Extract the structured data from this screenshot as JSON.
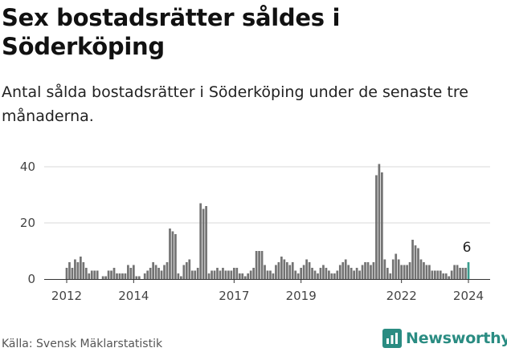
{
  "title": "Sex bostadsrätter såldes i Söderköping",
  "subtitle": "Antal sålda bostadsrätter i Söderköping under de senaste tre månaderna.",
  "source": "Källa: Svensk Mäklarstatistik",
  "brand": {
    "name": "Newsworthy",
    "icon": "newsworthy-logo-icon",
    "color": "#2a8c82"
  },
  "chart_data": {
    "type": "bar",
    "title": "",
    "xlabel": "",
    "ylabel": "",
    "ylim": [
      0,
      42
    ],
    "y_ticks": [
      "0",
      "20",
      "40"
    ],
    "x_ticks": [
      {
        "label": "2012",
        "index": 0
      },
      {
        "label": "2014",
        "index": 24
      },
      {
        "label": "2017",
        "index": 60
      },
      {
        "label": "2019",
        "index": 84
      },
      {
        "label": "2022",
        "index": 120
      },
      {
        "label": "2024",
        "index": 144
      }
    ],
    "categories": [
      "2012-01",
      "2012-02",
      "2012-03",
      "2012-04",
      "2012-05",
      "2012-06",
      "2012-07",
      "2012-08",
      "2012-09",
      "2012-10",
      "2012-11",
      "2012-12",
      "2013-01",
      "2013-02",
      "2013-03",
      "2013-04",
      "2013-05",
      "2013-06",
      "2013-07",
      "2013-08",
      "2013-09",
      "2013-10",
      "2013-11",
      "2013-12",
      "2014-01",
      "2014-02",
      "2014-03",
      "2014-04",
      "2014-05",
      "2014-06",
      "2014-07",
      "2014-08",
      "2014-09",
      "2014-10",
      "2014-11",
      "2014-12",
      "2015-01",
      "2015-02",
      "2015-03",
      "2015-04",
      "2015-05",
      "2015-06",
      "2015-07",
      "2015-08",
      "2015-09",
      "2015-10",
      "2015-11",
      "2015-12",
      "2016-01",
      "2016-02",
      "2016-03",
      "2016-04",
      "2016-05",
      "2016-06",
      "2016-07",
      "2016-08",
      "2016-09",
      "2016-10",
      "2016-11",
      "2016-12",
      "2017-01",
      "2017-02",
      "2017-03",
      "2017-04",
      "2017-05",
      "2017-06",
      "2017-07",
      "2017-08",
      "2017-09",
      "2017-10",
      "2017-11",
      "2017-12",
      "2018-01",
      "2018-02",
      "2018-03",
      "2018-04",
      "2018-05",
      "2018-06",
      "2018-07",
      "2018-08",
      "2018-09",
      "2018-10",
      "2018-11",
      "2018-12",
      "2019-01",
      "2019-02",
      "2019-03",
      "2019-04",
      "2019-05",
      "2019-06",
      "2019-07",
      "2019-08",
      "2019-09",
      "2019-10",
      "2019-11",
      "2019-12",
      "2020-01",
      "2020-02",
      "2020-03",
      "2020-04",
      "2020-05",
      "2020-06",
      "2020-07",
      "2020-08",
      "2020-09",
      "2020-10",
      "2020-11",
      "2020-12",
      "2021-01",
      "2021-02",
      "2021-03",
      "2021-04",
      "2021-05",
      "2021-06",
      "2021-07",
      "2021-08",
      "2021-09",
      "2021-10",
      "2021-11",
      "2021-12",
      "2022-01",
      "2022-02",
      "2022-03",
      "2022-04",
      "2022-05",
      "2022-06",
      "2022-07",
      "2022-08",
      "2022-09",
      "2022-10",
      "2022-11",
      "2022-12",
      "2023-01",
      "2023-02",
      "2023-03",
      "2023-04",
      "2023-05",
      "2023-06",
      "2023-07",
      "2023-08",
      "2023-09",
      "2023-10",
      "2023-11",
      "2023-12",
      "2024-01"
    ],
    "values": [
      4,
      6,
      4,
      7,
      6,
      8,
      6,
      4,
      2,
      3,
      3,
      3,
      0,
      1,
      1,
      3,
      3,
      4,
      2,
      2,
      2,
      2,
      5,
      4,
      5,
      1,
      1,
      0,
      2,
      3,
      4,
      6,
      5,
      4,
      3,
      5,
      6,
      18,
      17,
      16,
      2,
      1,
      5,
      6,
      7,
      3,
      3,
      4,
      27,
      25,
      26,
      2,
      3,
      3,
      4,
      3,
      4,
      3,
      3,
      3,
      4,
      4,
      2,
      2,
      1,
      2,
      3,
      4,
      10,
      10,
      10,
      5,
      3,
      3,
      2,
      5,
      6,
      8,
      7,
      6,
      5,
      6,
      3,
      2,
      4,
      5,
      7,
      6,
      4,
      3,
      2,
      4,
      5,
      4,
      3,
      2,
      2,
      3,
      5,
      6,
      7,
      5,
      4,
      3,
      4,
      3,
      5,
      6,
      6,
      5,
      6,
      37,
      41,
      38,
      7,
      4,
      2,
      7,
      9,
      7,
      5,
      5,
      5,
      6,
      14,
      12,
      11,
      7,
      6,
      5,
      5,
      3,
      3,
      3,
      3,
      2,
      2,
      1,
      3,
      5,
      5,
      4,
      4,
      4,
      6
    ],
    "highlight": {
      "index": 144,
      "label": "6",
      "color": "#3a9c8e"
    },
    "bar_color": "#737373"
  }
}
